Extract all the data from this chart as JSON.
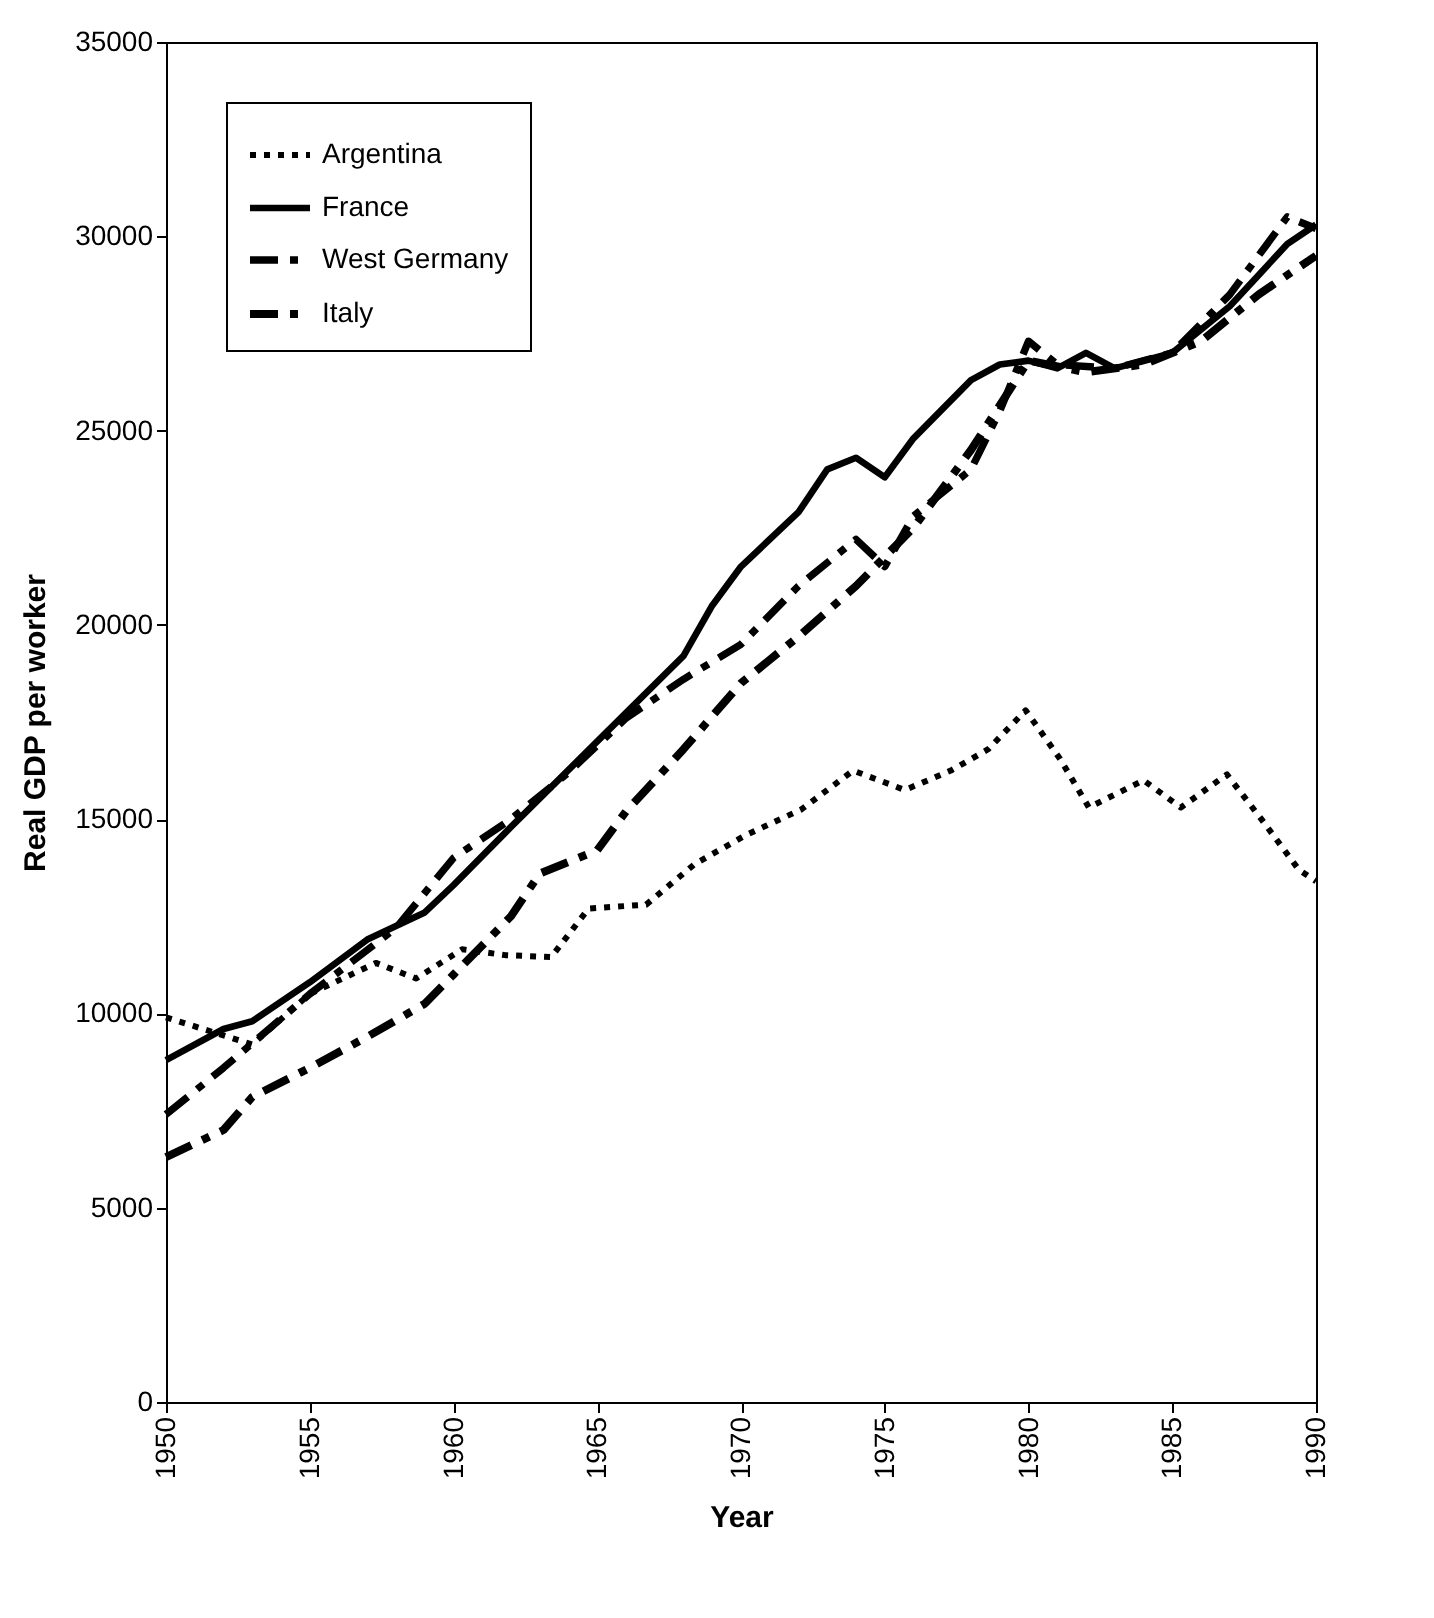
{
  "chart_data": {
    "type": "line",
    "xlabel": "Year",
    "ylabel": "Real GDP per worker",
    "xlim": [
      1950,
      1990
    ],
    "xticks": [
      1950,
      1955,
      1960,
      1965,
      1970,
      1975,
      1980,
      1985,
      1990
    ],
    "ylim": [
      0,
      35000
    ],
    "yticks": [
      0,
      5000,
      10000,
      15000,
      20000,
      25000,
      30000,
      35000
    ],
    "grid": false,
    "legend": "top left",
    "marker": "none",
    "series": [
      {
        "name": "Argentina",
        "color": "#000000",
        "line_style": "dotted",
        "x": [
          1950,
          1953,
          1955,
          1957.3,
          1958.7,
          1960.3,
          1961.8,
          1963.4,
          1964.7,
          1966.7,
          1968.4,
          1970.2,
          1972.1,
          1973.9,
          1975.7,
          1977.3,
          1978.6,
          1979.9,
          1981.1,
          1982.1,
          1984,
          1985.3,
          1986.9,
          1988.1,
          1989.4,
          1990
        ],
        "values": [
          9900,
          9200,
          10500,
          11300,
          10900,
          11650,
          11500,
          11450,
          12700,
          12800,
          13850,
          14600,
          15250,
          16250,
          15750,
          16250,
          16800,
          17800,
          16550,
          15300,
          16000,
          15300,
          16150,
          15000,
          13700,
          13400
        ]
      },
      {
        "name": "France",
        "color": "#000000",
        "line_style": "solid",
        "x": [
          1950,
          1952,
          1953,
          1955,
          1957,
          1959,
          1960,
          1962,
          1965,
          1968,
          1969,
          1970,
          1972,
          1973,
          1974,
          1975,
          1976,
          1978,
          1979,
          1980,
          1981,
          1982,
          1983,
          1985,
          1987,
          1988,
          1989,
          1990
        ],
        "values": [
          8800,
          9600,
          9800,
          10800,
          11900,
          12600,
          13300,
          14800,
          17000,
          19200,
          20500,
          21500,
          22900,
          24000,
          24300,
          23800,
          24800,
          26300,
          26700,
          26800,
          26600,
          27000,
          26600,
          27000,
          28200,
          29000,
          29800,
          30300
        ]
      },
      {
        "name": "West Germany",
        "color": "#000000",
        "line_style": "dashed",
        "x": [
          1950,
          1952,
          1955,
          1958,
          1960,
          1962,
          1964,
          1966,
          1968,
          1970,
          1972,
          1974,
          1975,
          1976,
          1978,
          1979,
          1980,
          1981,
          1983,
          1985,
          1987,
          1989,
          1990
        ],
        "values": [
          7400,
          8600,
          10500,
          12200,
          14000,
          15000,
          16200,
          17600,
          18600,
          19500,
          21000,
          22200,
          21500,
          22800,
          24000,
          25500,
          27300,
          26700,
          26600,
          27000,
          28500,
          30500,
          30200
        ]
      },
      {
        "name": "Italy",
        "color": "#000000",
        "line_style": "dashed",
        "x": [
          1950,
          1952,
          1953,
          1955,
          1957,
          1959,
          1960,
          1962,
          1963,
          1965,
          1966,
          1968,
          1970,
          1972,
          1974,
          1976,
          1978,
          1980,
          1982,
          1984,
          1986,
          1988,
          1990
        ],
        "values": [
          6300,
          7000,
          7850,
          8600,
          9400,
          10250,
          11000,
          12500,
          13600,
          14200,
          15200,
          16800,
          18500,
          19700,
          21000,
          22500,
          24500,
          26800,
          26500,
          26700,
          27300,
          28500,
          29500
        ]
      }
    ]
  }
}
